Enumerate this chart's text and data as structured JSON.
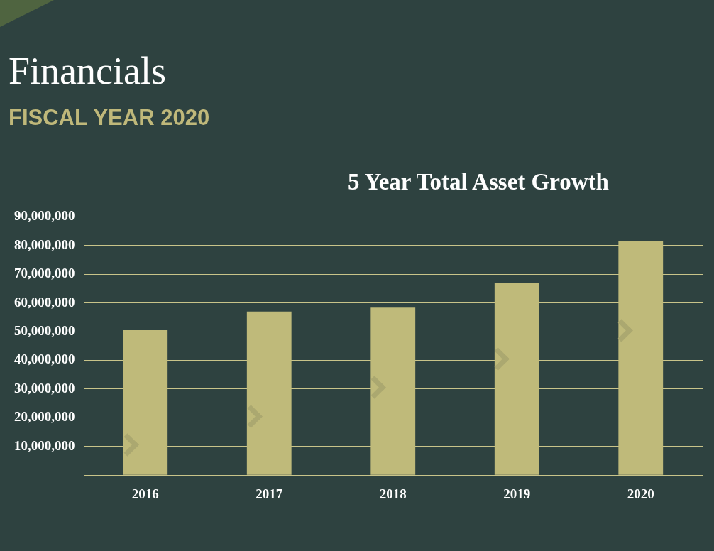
{
  "chart_data": {
    "type": "bar",
    "title": "Financials",
    "subtitle": "FISCAL YEAR 2020",
    "annotations": [
      "5 Year Total Asset Growth"
    ],
    "categories": [
      "2016",
      "2017",
      "2018",
      "2019",
      "2020"
    ],
    "values": [
      50500000,
      57000000,
      58400000,
      67000000,
      81600000
    ],
    "color": "#bfba7a",
    "ylim": [
      0,
      90000000
    ],
    "yticks": [
      {
        "value": 0,
        "label": null
      },
      {
        "value": 10000000,
        "label": "10,000,000"
      },
      {
        "value": 20000000,
        "label": "20,000,000"
      },
      {
        "value": 30000000,
        "label": "30,000,000"
      },
      {
        "value": 40000000,
        "label": "40,000,000"
      },
      {
        "value": 50000000,
        "label": "50,000,000"
      },
      {
        "value": 60000000,
        "label": "60,000,000"
      },
      {
        "value": 70000000,
        "label": "70,000,000"
      },
      {
        "value": 80000000,
        "label": "80,000,000"
      },
      {
        "value": 90000000,
        "label": "90,000,000"
      }
    ],
    "grid": "y",
    "legend": false
  }
}
